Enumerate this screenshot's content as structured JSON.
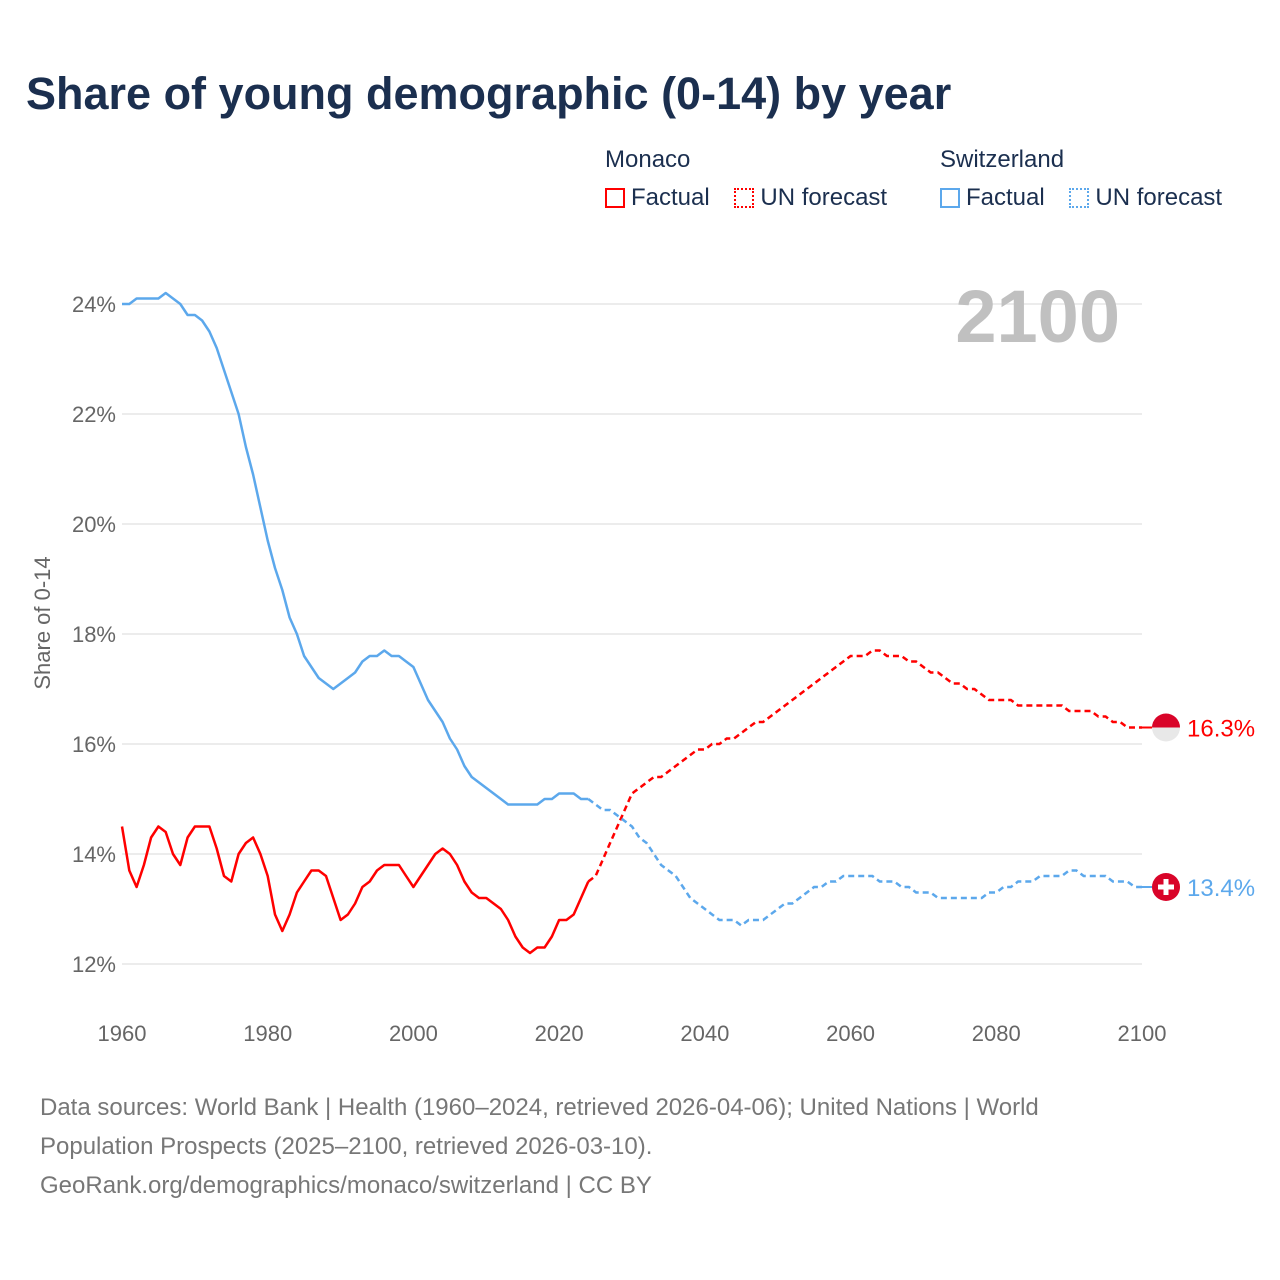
{
  "title": "Share of young demographic (0-14) by year",
  "legend": [
    {
      "group": "Monaco",
      "color": "#ff0000",
      "items": [
        "Factual",
        "UN forecast"
      ]
    },
    {
      "group": "Switzerland",
      "color": "#5ca8ec",
      "items": [
        "Factual",
        "UN forecast"
      ]
    }
  ],
  "year_label": "2100",
  "sources": {
    "line1": "Data sources: World Bank | Health (1960–2024, retrieved 2026-04-06); United Nations | World",
    "line2": "Population Prospects (2025–2100, retrieved 2026-03-10).",
    "line3": "GeoRank.org/demographics/monaco/switzerland | CC BY"
  },
  "chart_data": {
    "type": "line",
    "title": "Share of young demographic (0-14) by year",
    "xlabel": "",
    "ylabel": "Share of 0-14",
    "xlim": [
      1960,
      2100
    ],
    "ylim": [
      12,
      24
    ],
    "x_ticks": [
      "1960",
      "1980",
      "2000",
      "2020",
      "2040",
      "2060",
      "2080",
      "2100"
    ],
    "y_ticks": [
      "12%",
      "14%",
      "16%",
      "18%",
      "20%",
      "22%",
      "24%"
    ],
    "grid": true,
    "series": [
      {
        "name": "Monaco",
        "color": "#ff0000",
        "end_label": "16.3%",
        "factual_start": 1960,
        "factual": [
          14.5,
          13.7,
          13.4,
          13.8,
          14.3,
          14.5,
          14.4,
          14.0,
          13.8,
          14.3,
          14.5,
          14.5,
          14.5,
          14.1,
          13.6,
          13.5,
          14.0,
          14.2,
          14.3,
          14.0,
          13.6,
          12.9,
          12.6,
          12.9,
          13.3,
          13.5,
          13.7,
          13.7,
          13.6,
          13.2,
          12.8,
          12.9,
          13.1,
          13.4,
          13.5,
          13.7,
          13.8,
          13.8,
          13.8,
          13.6,
          13.4,
          13.6,
          13.8,
          14.0,
          14.1,
          14.0,
          13.8,
          13.5,
          13.3,
          13.2,
          13.2,
          13.1,
          13.0,
          12.8,
          12.5,
          12.3,
          12.2,
          12.3,
          12.3,
          12.5,
          12.8,
          12.8,
          12.9,
          13.2,
          13.5
        ],
        "forecast_start": 2024,
        "forecast": [
          13.5,
          13.6,
          13.9,
          14.2,
          14.5,
          14.8,
          15.1,
          15.2,
          15.3,
          15.4,
          15.4,
          15.5,
          15.6,
          15.7,
          15.8,
          15.9,
          15.9,
          16.0,
          16.0,
          16.1,
          16.1,
          16.2,
          16.3,
          16.4,
          16.4,
          16.5,
          16.6,
          16.7,
          16.8,
          16.9,
          17.0,
          17.1,
          17.2,
          17.3,
          17.4,
          17.5,
          17.6,
          17.6,
          17.6,
          17.7,
          17.7,
          17.6,
          17.6,
          17.6,
          17.5,
          17.5,
          17.4,
          17.3,
          17.3,
          17.2,
          17.1,
          17.1,
          17.0,
          17.0,
          16.9,
          16.8,
          16.8,
          16.8,
          16.8,
          16.7,
          16.7,
          16.7,
          16.7,
          16.7,
          16.7,
          16.7,
          16.6,
          16.6,
          16.6,
          16.6,
          16.5,
          16.5,
          16.4,
          16.4,
          16.3,
          16.3,
          16.3
        ]
      },
      {
        "name": "Switzerland",
        "color": "#5ca8ec",
        "end_label": "13.4%",
        "factual_start": 1960,
        "factual": [
          24.0,
          24.0,
          24.1,
          24.1,
          24.1,
          24.1,
          24.2,
          24.1,
          24.0,
          23.8,
          23.8,
          23.7,
          23.5,
          23.2,
          22.8,
          22.4,
          22.0,
          21.4,
          20.9,
          20.3,
          19.7,
          19.2,
          18.8,
          18.3,
          18.0,
          17.6,
          17.4,
          17.2,
          17.1,
          17.0,
          17.1,
          17.2,
          17.3,
          17.5,
          17.6,
          17.6,
          17.7,
          17.6,
          17.6,
          17.5,
          17.4,
          17.1,
          16.8,
          16.6,
          16.4,
          16.1,
          15.9,
          15.6,
          15.4,
          15.3,
          15.2,
          15.1,
          15.0,
          14.9,
          14.9,
          14.9,
          14.9,
          14.9,
          15.0,
          15.0,
          15.1,
          15.1,
          15.1,
          15.0,
          15.0
        ],
        "forecast_start": 2024,
        "forecast": [
          15.0,
          14.9,
          14.8,
          14.8,
          14.7,
          14.6,
          14.5,
          14.3,
          14.2,
          14.0,
          13.8,
          13.7,
          13.6,
          13.4,
          13.2,
          13.1,
          13.0,
          12.9,
          12.8,
          12.8,
          12.8,
          12.7,
          12.8,
          12.8,
          12.8,
          12.9,
          13.0,
          13.1,
          13.1,
          13.2,
          13.3,
          13.4,
          13.4,
          13.5,
          13.5,
          13.6,
          13.6,
          13.6,
          13.6,
          13.6,
          13.5,
          13.5,
          13.5,
          13.4,
          13.4,
          13.3,
          13.3,
          13.3,
          13.2,
          13.2,
          13.2,
          13.2,
          13.2,
          13.2,
          13.2,
          13.3,
          13.3,
          13.4,
          13.4,
          13.5,
          13.5,
          13.5,
          13.6,
          13.6,
          13.6,
          13.6,
          13.7,
          13.7,
          13.6,
          13.6,
          13.6,
          13.6,
          13.5,
          13.5,
          13.5,
          13.4,
          13.4
        ]
      }
    ]
  }
}
